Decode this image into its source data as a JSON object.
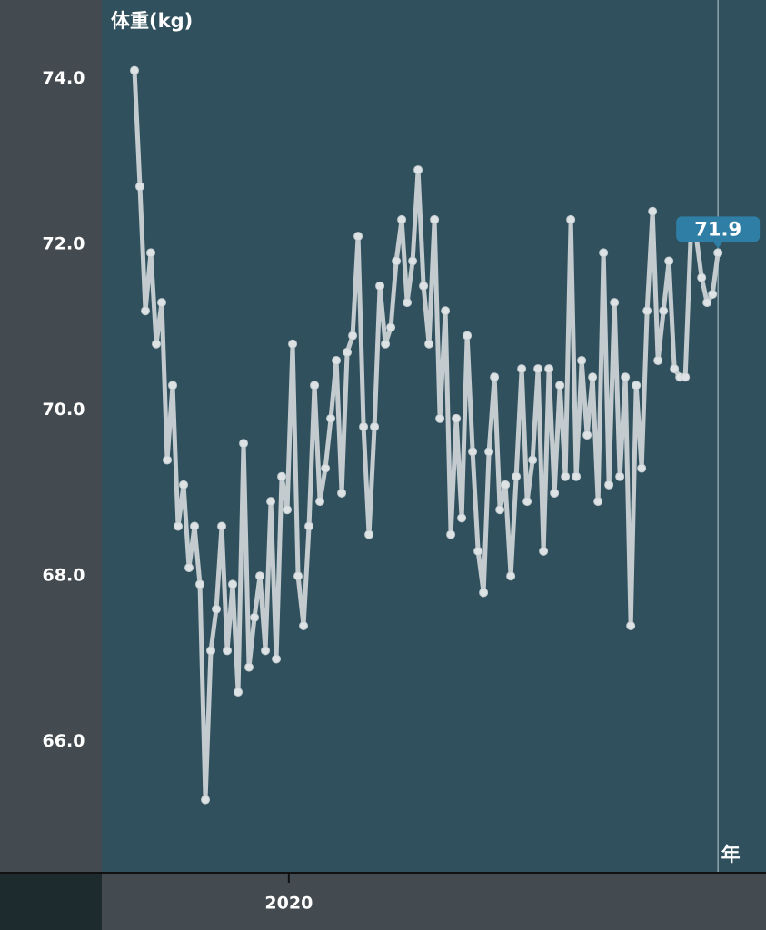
{
  "chart_data": {
    "type": "line",
    "y_label": "体重(kg)",
    "annotation": "年",
    "x": [
      2019.717,
      2019.727,
      2019.737,
      2019.747,
      2019.757,
      2019.767,
      2019.777,
      2019.787,
      2019.797,
      2019.807,
      2019.817,
      2019.827,
      2019.837,
      2019.847,
      2019.857,
      2019.867,
      2019.877,
      2019.887,
      2019.897,
      2019.907,
      2019.917,
      2019.927,
      2019.937,
      2019.947,
      2019.957,
      2019.967,
      2019.977,
      2019.987,
      2019.997,
      2020.007,
      2020.017,
      2020.027,
      2020.037,
      2020.047,
      2020.057,
      2020.067,
      2020.077,
      2020.087,
      2020.097,
      2020.107,
      2020.117,
      2020.127,
      2020.137,
      2020.147,
      2020.157,
      2020.167,
      2020.177,
      2020.187,
      2020.197,
      2020.207,
      2020.217,
      2020.227,
      2020.237,
      2020.247,
      2020.257,
      2020.267,
      2020.277,
      2020.287,
      2020.297,
      2020.307,
      2020.317,
      2020.327,
      2020.337,
      2020.347,
      2020.357,
      2020.367,
      2020.377,
      2020.387,
      2020.397,
      2020.407,
      2020.417,
      2020.427,
      2020.437,
      2020.447,
      2020.457,
      2020.467,
      2020.477,
      2020.487,
      2020.497,
      2020.507,
      2020.517,
      2020.527,
      2020.537,
      2020.547,
      2020.557,
      2020.567,
      2020.577,
      2020.587,
      2020.597,
      2020.607,
      2020.617,
      2020.627,
      2020.637,
      2020.647,
      2020.657,
      2020.667,
      2020.677,
      2020.687,
      2020.697,
      2020.707,
      2020.717,
      2020.727,
      2020.737,
      2020.747,
      2020.757,
      2020.767,
      2020.777,
      2020.787
    ],
    "series": [
      {
        "color": "#c3cbcf",
        "values": [
          74.1,
          72.7,
          71.2,
          71.9,
          70.8,
          71.3,
          69.4,
          70.3,
          68.6,
          69.1,
          68.1,
          68.6,
          67.9,
          65.3,
          67.1,
          67.6,
          68.6,
          67.1,
          67.9,
          66.6,
          69.6,
          66.9,
          67.5,
          68.0,
          67.1,
          68.9,
          67.0,
          69.2,
          68.8,
          70.8,
          68.0,
          67.4,
          68.6,
          70.3,
          68.9,
          69.3,
          69.9,
          70.6,
          69.0,
          70.7,
          70.9,
          72.1,
          69.8,
          68.5,
          69.8,
          71.5,
          70.8,
          71.0,
          71.8,
          72.3,
          71.3,
          71.8,
          72.9,
          71.5,
          70.8,
          72.3,
          69.9,
          71.2,
          68.5,
          69.9,
          68.7,
          70.9,
          69.5,
          68.3,
          67.8,
          69.5,
          70.4,
          68.8,
          69.1,
          68.0,
          69.2,
          70.5,
          68.9,
          69.4,
          70.5,
          68.3,
          70.5,
          69.0,
          70.3,
          69.2,
          72.3,
          69.2,
          70.6,
          69.7,
          70.4,
          68.9,
          71.9,
          69.1,
          71.3,
          69.2,
          70.4,
          67.4,
          70.3,
          69.3,
          71.2,
          72.4,
          70.6,
          71.2,
          71.8,
          70.5,
          70.4,
          70.4,
          72.1,
          72.1,
          71.6,
          71.3,
          71.4,
          71.9
        ]
      }
    ],
    "xlim": [
      2019.657,
      2020.875
    ],
    "xticks": [
      2020
    ],
    "ylim": [
      64.43,
      74.95
    ],
    "yticks": [
      {
        "value": 74,
        "label": "74.0"
      },
      {
        "value": 72,
        "label": "72.0"
      },
      {
        "value": 70,
        "label": "70.0"
      },
      {
        "value": 68,
        "label": "68.0"
      },
      {
        "value": 66,
        "label": "66.0"
      }
    ],
    "callout_labels": [
      {
        "index": 107,
        "label": "71.9"
      }
    ]
  }
}
